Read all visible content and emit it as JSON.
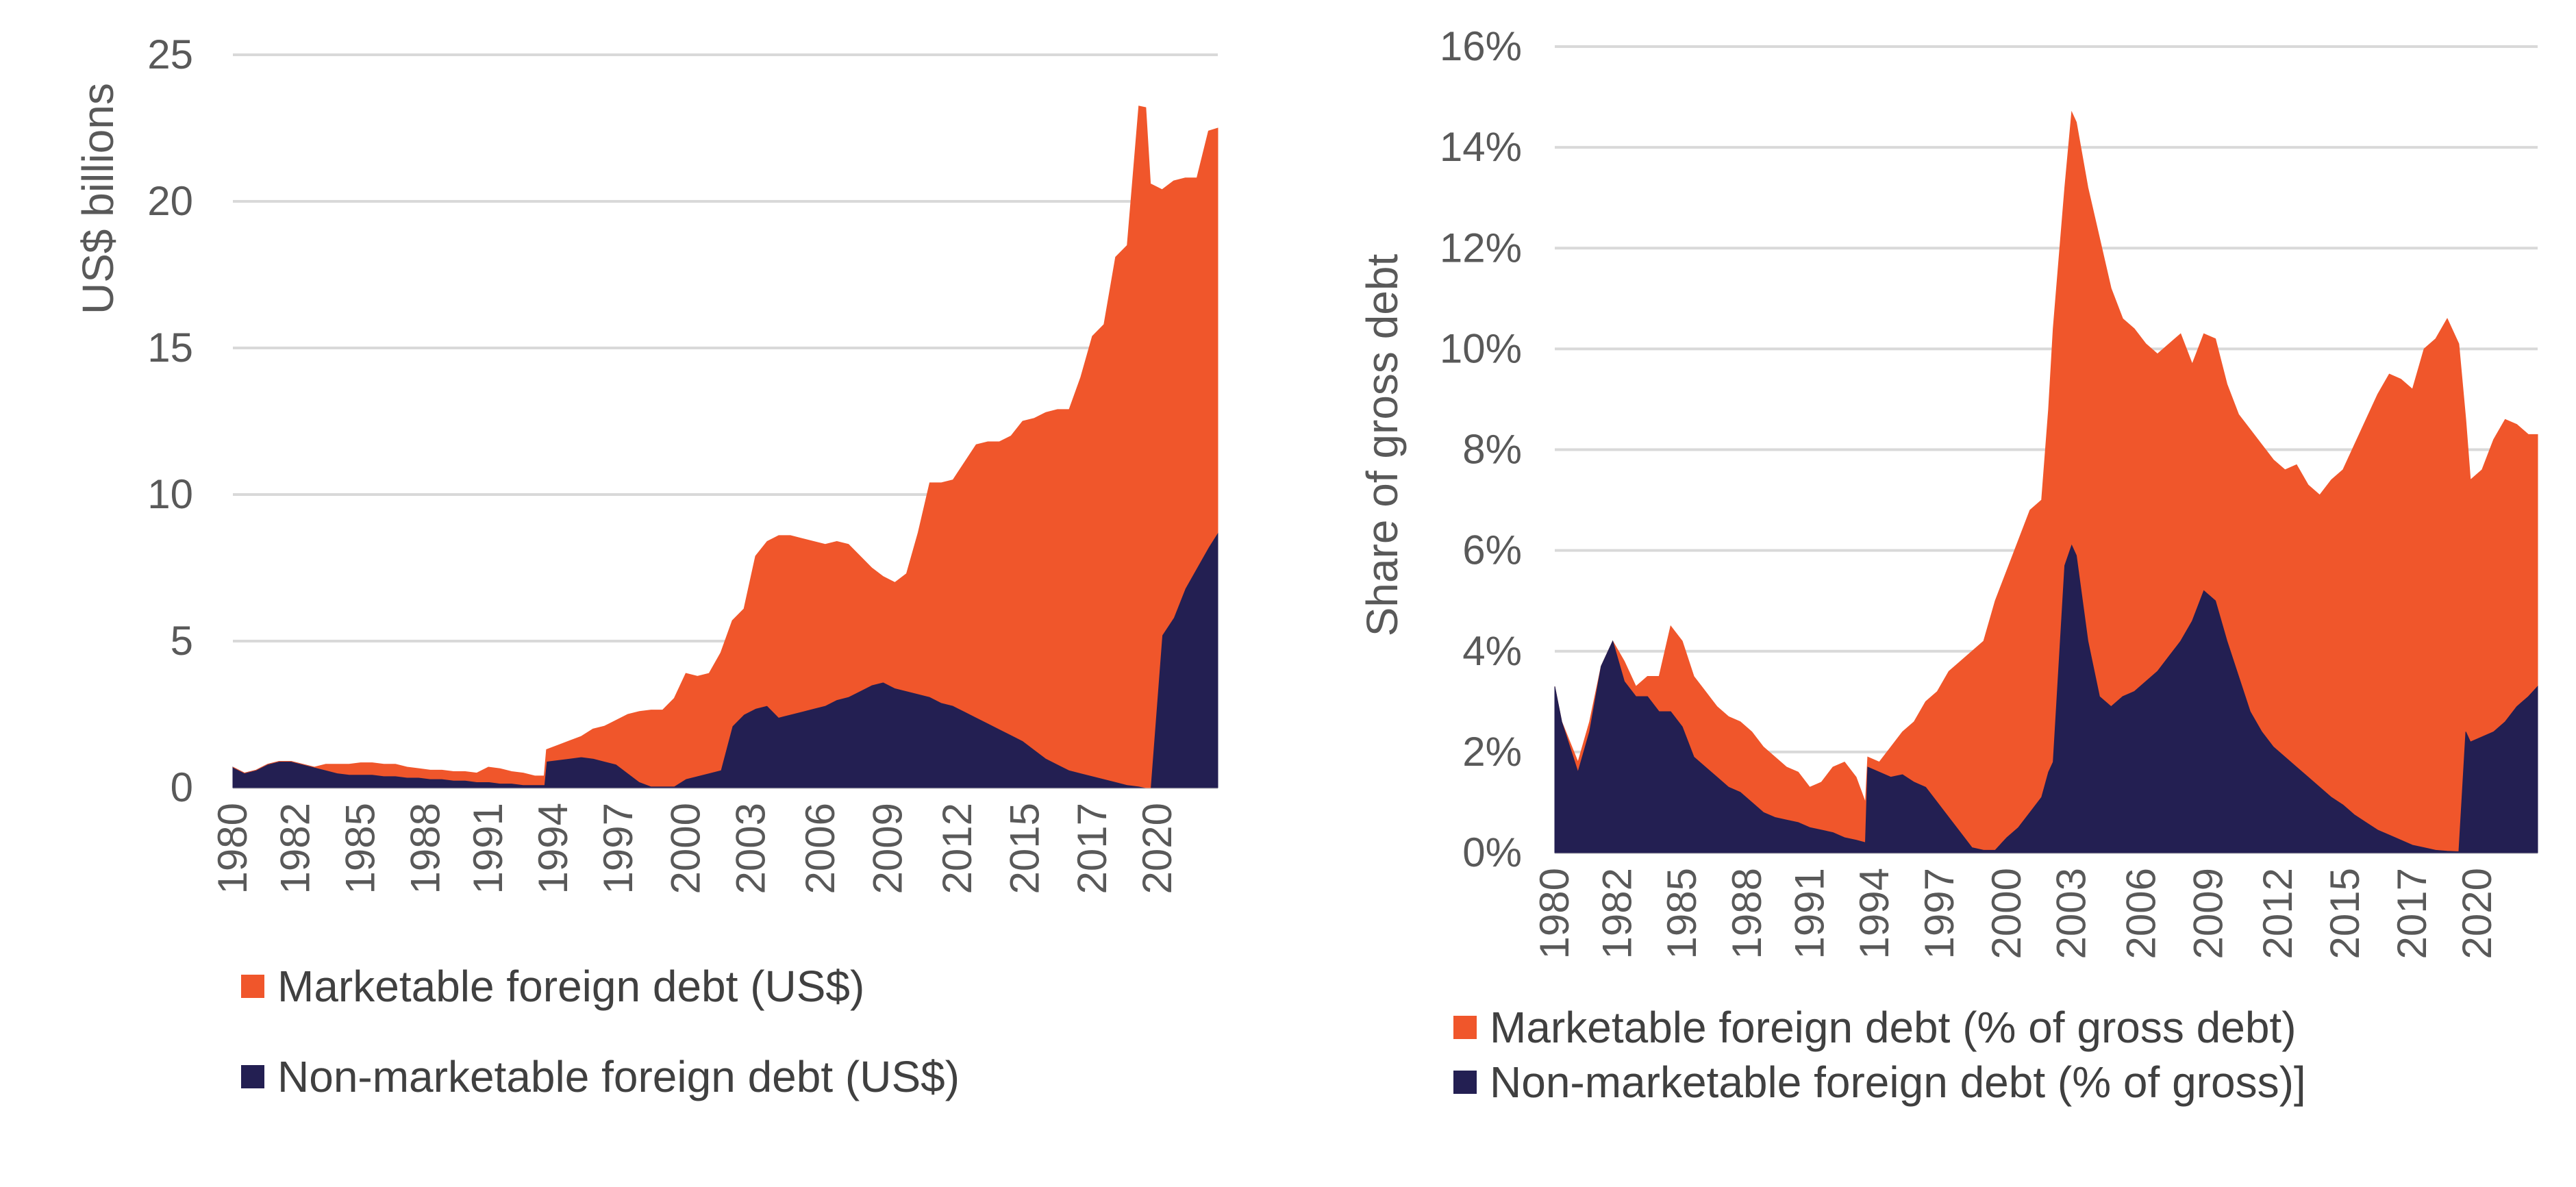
{
  "colors": {
    "marketable": "#F0562B",
    "non_marketable": "#231F52",
    "grid": "#D9D9D9",
    "text": "#595959"
  },
  "chart_data": [
    {
      "type": "area",
      "stacked": true,
      "ylabel": "US$ billions",
      "ylim": [
        0,
        25
      ],
      "yticks": [
        "0",
        "5",
        "10",
        "15",
        "20",
        "25"
      ],
      "ytick_values": [
        0,
        5,
        10,
        15,
        20,
        25
      ],
      "xlim": [
        1980,
        2022.4
      ],
      "xticks": [
        "1980",
        "1982",
        "1985",
        "1988",
        "1991",
        "1994",
        "1997",
        "2000",
        "2003",
        "2006",
        "2009",
        "2012",
        "2015",
        "2017",
        "2020"
      ],
      "xtick_values": [
        1980,
        1982.7,
        1985.5,
        1988.3,
        1991,
        1993.8,
        1996.6,
        1999.5,
        2002.3,
        2005.3,
        2008.2,
        2011.2,
        2014.1,
        2017,
        2019.8
      ],
      "grid": true,
      "legend_position": "bottom",
      "x": [
        1980,
        1980.5,
        1981,
        1981.5,
        1982,
        1982.5,
        1983,
        1983.5,
        1984,
        1984.5,
        1985,
        1985.5,
        1986,
        1986.5,
        1987,
        1987.5,
        1988,
        1988.5,
        1989,
        1989.5,
        1990,
        1990.5,
        1991,
        1991.5,
        1992,
        1992.5,
        1993,
        1993.4,
        1993.5,
        1994,
        1994.5,
        1995,
        1995.5,
        1996,
        1996.5,
        1997,
        1997.5,
        1998,
        1998.5,
        1999,
        1999.5,
        2000,
        2000.5,
        2001,
        2001.5,
        2002,
        2002.5,
        2003,
        2003.5,
        2004,
        2004.5,
        2005,
        2005.5,
        2006,
        2006.5,
        2007,
        2007.5,
        2008,
        2008.5,
        2009,
        2009.5,
        2010,
        2010.5,
        2011,
        2011.5,
        2012,
        2012.5,
        2013,
        2013.5,
        2014,
        2014.5,
        2015,
        2015.5,
        2016,
        2016.5,
        2017,
        2017.5,
        2018,
        2018.5,
        2019,
        2019.3,
        2019.5,
        2020,
        2020.5,
        2021,
        2021.5,
        2022,
        2022.4
      ],
      "series": [
        {
          "name": "Non-marketable foreign debt (US$)",
          "color": "#231F52",
          "values": [
            0.7,
            0.5,
            0.6,
            0.8,
            0.9,
            0.9,
            0.8,
            0.7,
            0.6,
            0.5,
            0.45,
            0.45,
            0.45,
            0.4,
            0.4,
            0.35,
            0.35,
            0.3,
            0.3,
            0.25,
            0.25,
            0.2,
            0.2,
            0.15,
            0.15,
            0.1,
            0.1,
            0.1,
            0.9,
            0.95,
            1.0,
            1.05,
            1.0,
            0.9,
            0.8,
            0.5,
            0.2,
            0.05,
            0.05,
            0.05,
            0.3,
            0.4,
            0.5,
            0.6,
            2.1,
            2.5,
            2.7,
            2.8,
            2.4,
            2.5,
            2.6,
            2.7,
            2.8,
            3.0,
            3.1,
            3.3,
            3.5,
            3.6,
            3.4,
            3.3,
            3.2,
            3.1,
            2.9,
            2.8,
            2.6,
            2.4,
            2.2,
            2.0,
            1.8,
            1.6,
            1.3,
            1.0,
            0.8,
            0.6,
            0.5,
            0.4,
            0.3,
            0.2,
            0.1,
            0.05,
            0.0,
            0.0,
            5.2,
            5.8,
            6.8,
            7.5,
            8.2,
            8.7
          ]
        },
        {
          "name": "Marketable foreign debt (US$)",
          "color": "#F0562B",
          "values": [
            0.0,
            0.0,
            0.0,
            0.0,
            0.0,
            0.0,
            0.0,
            0.0,
            0.2,
            0.3,
            0.35,
            0.4,
            0.4,
            0.4,
            0.4,
            0.35,
            0.3,
            0.3,
            0.3,
            0.3,
            0.3,
            0.3,
            0.5,
            0.5,
            0.4,
            0.4,
            0.3,
            0.3,
            0.4,
            0.5,
            0.6,
            0.7,
            1.0,
            1.2,
            1.5,
            2.0,
            2.4,
            2.6,
            2.6,
            3.0,
            3.6,
            3.4,
            3.4,
            4.0,
            3.6,
            3.6,
            5.2,
            5.6,
            6.2,
            6.1,
            5.9,
            5.7,
            5.5,
            5.4,
            5.2,
            4.6,
            4.0,
            3.6,
            3.6,
            4.0,
            5.5,
            7.3,
            7.5,
            7.7,
            8.5,
            9.3,
            9.6,
            9.8,
            10.2,
            10.9,
            11.3,
            11.8,
            12.1,
            12.3,
            13.5,
            15.0,
            15.5,
            17.9,
            18.4,
            23.2,
            23.2,
            20.6,
            15.2,
            14.9,
            14.0,
            13.3,
            14.2,
            13.8
          ]
        }
      ]
    },
    {
      "type": "area",
      "stacked": false,
      "ylabel": "Share of gross debt",
      "ylim": [
        0,
        16
      ],
      "yticks": [
        "0%",
        "2%",
        "4%",
        "6%",
        "8%",
        "10%",
        "12%",
        "14%",
        "16%"
      ],
      "ytick_values": [
        0,
        2,
        4,
        6,
        8,
        10,
        12,
        14,
        16
      ],
      "xlim": [
        1980,
        2022.4
      ],
      "xticks": [
        "1980",
        "1982",
        "1985",
        "1988",
        "1991",
        "1994",
        "1997",
        "2000",
        "2003",
        "2006",
        "2009",
        "2012",
        "2015",
        "2017",
        "2020"
      ],
      "xtick_values": [
        1980,
        1982.7,
        1985.5,
        1988.3,
        1991,
        1993.8,
        1996.6,
        1999.5,
        2002.3,
        2005.3,
        2008.2,
        2011.2,
        2014.1,
        2017,
        2019.8
      ],
      "grid": true,
      "legend_position": "bottom",
      "x": [
        1980,
        1980.3,
        1981,
        1981.5,
        1982,
        1982.5,
        1983,
        1983.5,
        1984,
        1984.5,
        1985,
        1985.5,
        1986,
        1986.5,
        1987,
        1987.5,
        1988,
        1988.5,
        1989,
        1989.5,
        1990,
        1990.5,
        1991,
        1991.5,
        1992,
        1992.5,
        1993,
        1993.4,
        1993.5,
        1994,
        1994.5,
        1995,
        1995.5,
        1996,
        1996.5,
        1997,
        1997.5,
        1998,
        1998.5,
        1999,
        1999.5,
        2000,
        2000.5,
        2001,
        2001.3,
        2001.5,
        2002,
        2002.3,
        2002.5,
        2003,
        2003.5,
        2004,
        2004.5,
        2005,
        2005.5,
        2006,
        2006.5,
        2007,
        2007.5,
        2008,
        2008.5,
        2009,
        2009.5,
        2010,
        2010.5,
        2011,
        2011.5,
        2012,
        2012.5,
        2013,
        2013.5,
        2014,
        2014.5,
        2015,
        2015.5,
        2016,
        2016.5,
        2017,
        2017.5,
        2018,
        2018.5,
        2019,
        2019.3,
        2019.5,
        2020,
        2020.5,
        2021,
        2021.5,
        2022,
        2022.4
      ],
      "series": [
        {
          "name": "Marketable foreign debt (% of gross debt)",
          "color": "#F0562B",
          "values": [
            3.3,
            2.6,
            1.8,
            2.6,
            3.7,
            4.2,
            3.8,
            3.3,
            3.5,
            3.5,
            4.5,
            4.2,
            3.5,
            3.2,
            2.9,
            2.7,
            2.6,
            2.4,
            2.1,
            1.9,
            1.7,
            1.6,
            1.3,
            1.4,
            1.7,
            1.8,
            1.5,
            1.0,
            1.9,
            1.8,
            2.1,
            2.4,
            2.6,
            3.0,
            3.2,
            3.6,
            3.8,
            4.0,
            4.2,
            5.0,
            5.6,
            6.2,
            6.8,
            7.0,
            8.8,
            10.4,
            13.2,
            14.7,
            14.5,
            13.2,
            12.2,
            11.2,
            10.6,
            10.4,
            10.1,
            9.9,
            10.1,
            10.3,
            9.7,
            10.3,
            10.2,
            9.3,
            8.7,
            8.4,
            8.1,
            7.8,
            7.6,
            7.7,
            7.3,
            7.1,
            7.4,
            7.6,
            8.1,
            8.6,
            9.1,
            9.5,
            9.4,
            9.2,
            10.0,
            10.2,
            10.6,
            10.1,
            8.6,
            7.4,
            7.6,
            8.2,
            8.6,
            8.5,
            8.3,
            8.3
          ]
        },
        {
          "name": "Non-marketable foreign debt (% of gross)]",
          "color": "#231F52",
          "values": [
            3.3,
            2.6,
            1.6,
            2.4,
            3.7,
            4.2,
            3.4,
            3.1,
            3.1,
            2.8,
            2.8,
            2.5,
            1.9,
            1.7,
            1.5,
            1.3,
            1.2,
            1.0,
            0.8,
            0.7,
            0.65,
            0.6,
            0.5,
            0.45,
            0.4,
            0.3,
            0.25,
            0.2,
            1.7,
            1.6,
            1.5,
            1.55,
            1.4,
            1.3,
            1.0,
            0.7,
            0.4,
            0.1,
            0.05,
            0.05,
            0.3,
            0.5,
            0.8,
            1.1,
            1.6,
            1.8,
            5.7,
            6.1,
            5.9,
            4.2,
            3.1,
            2.9,
            3.1,
            3.2,
            3.4,
            3.6,
            3.9,
            4.2,
            4.6,
            5.2,
            5.0,
            4.2,
            3.5,
            2.8,
            2.4,
            2.1,
            1.9,
            1.7,
            1.5,
            1.3,
            1.1,
            0.95,
            0.75,
            0.6,
            0.45,
            0.35,
            0.25,
            0.15,
            0.1,
            0.05,
            0.03,
            0.02,
            2.4,
            2.2,
            2.3,
            2.4,
            2.6,
            2.9,
            3.1,
            3.3
          ]
        }
      ]
    }
  ],
  "legends": [
    {
      "items": [
        "Marketable foreign debt (US$)",
        "Non-marketable foreign debt (US$)"
      ]
    },
    {
      "items": [
        "Marketable foreign debt (% of gross debt)",
        "Non-marketable foreign debt (% of gross)]"
      ]
    }
  ]
}
